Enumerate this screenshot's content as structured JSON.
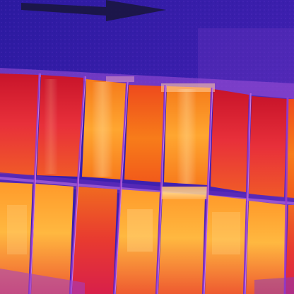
{
  "image": {
    "kind": "thermal-camera-photo",
    "subject": "solar-panel-array",
    "palette": {
      "background_cold": "#2a1a9e",
      "background_mid": "#5a2ab8",
      "frame_violet": "#8a4ad8",
      "cell_hot_red": "#e0202a",
      "cell_orange": "#f26a14",
      "cell_yellow": "#ffb030",
      "highlight_pale": "#ffe0a0"
    },
    "rows": [
      {
        "name": "upper-row",
        "cells": 8
      },
      {
        "name": "lower-row",
        "cells": 8
      }
    ],
    "arrow_icon": "arrow-right-icon"
  }
}
